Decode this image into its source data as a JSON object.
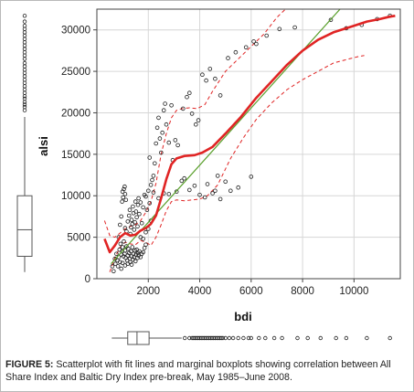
{
  "caption": {
    "label": "FIGURE 5:",
    "text": " Scatterplot with fit lines and marginal boxplots showing correlation between All Share Index and Baltic Dry Index pre-break, May 1985–June 2008."
  },
  "chart_data": {
    "type": "scatter",
    "xlabel": "bdi",
    "ylabel": "alsi",
    "xlim": [
      0,
      11800
    ],
    "ylim": [
      0,
      32500
    ],
    "xticks": [
      2000,
      4000,
      6000,
      8000,
      10000
    ],
    "xtick_labels": [
      "2000",
      "4000",
      "6000",
      "8000",
      "10000"
    ],
    "yticks": [
      0,
      5000,
      10000,
      15000,
      20000,
      25000,
      30000
    ],
    "ytick_labels": [
      "0",
      "5000",
      "10000",
      "15000",
      "20000",
      "25000",
      "30000"
    ],
    "grid": true,
    "colors": {
      "points": "#222222",
      "linear_fit": "#5aa02c",
      "smooth_fit": "#e02424",
      "ci": "#e02424",
      "box": "#555555"
    },
    "points": [
      [
        600,
        1500
      ],
      [
        650,
        900
      ],
      [
        700,
        2400
      ],
      [
        720,
        1800
      ],
      [
        760,
        3000
      ],
      [
        800,
        2200
      ],
      [
        820,
        1500
      ],
      [
        850,
        2600
      ],
      [
        880,
        3500
      ],
      [
        900,
        2000
      ],
      [
        920,
        4200
      ],
      [
        950,
        2900
      ],
      [
        980,
        3300
      ],
      [
        1000,
        3800
      ],
      [
        1030,
        2700
      ],
      [
        1050,
        4500
      ],
      [
        1080,
        3000
      ],
      [
        1100,
        3400
      ],
      [
        1120,
        2500
      ],
      [
        1150,
        3900
      ],
      [
        1180,
        2200
      ],
      [
        1200,
        2800
      ],
      [
        1220,
        3600
      ],
      [
        1250,
        3100
      ],
      [
        1280,
        2400
      ],
      [
        1300,
        2000
      ],
      [
        1330,
        3300
      ],
      [
        1350,
        2700
      ],
      [
        1380,
        3800
      ],
      [
        1400,
        2300
      ],
      [
        1420,
        3000
      ],
      [
        1450,
        2600
      ],
      [
        1480,
        3400
      ],
      [
        1500,
        2100
      ],
      [
        1520,
        2900
      ],
      [
        1550,
        3500
      ],
      [
        1580,
        2500
      ],
      [
        1600,
        3100
      ],
      [
        1620,
        2800
      ],
      [
        1650,
        3300
      ],
      [
        1700,
        2600
      ],
      [
        1750,
        3000
      ],
      [
        1800,
        3200
      ],
      [
        1850,
        3700
      ],
      [
        1900,
        4100
      ],
      [
        1200,
        1800
      ],
      [
        1100,
        1600
      ],
      [
        1000,
        1900
      ],
      [
        950,
        1200
      ],
      [
        1350,
        1700
      ],
      [
        850,
        5000
      ],
      [
        900,
        6500
      ],
      [
        950,
        7500
      ],
      [
        980,
        9300
      ],
      [
        1000,
        10500
      ],
      [
        1020,
        9800
      ],
      [
        1050,
        10800
      ],
      [
        1080,
        11100
      ],
      [
        1100,
        10200
      ],
      [
        1130,
        9500
      ],
      [
        1100,
        6100
      ],
      [
        1150,
        5700
      ],
      [
        1200,
        6900
      ],
      [
        1250,
        7600
      ],
      [
        1280,
        8300
      ],
      [
        1300,
        5400
      ],
      [
        1330,
        6200
      ],
      [
        1350,
        7100
      ],
      [
        1380,
        6600
      ],
      [
        1400,
        8700
      ],
      [
        1420,
        7900
      ],
      [
        1450,
        5900
      ],
      [
        1480,
        6800
      ],
      [
        1500,
        9300
      ],
      [
        1520,
        8100
      ],
      [
        1550,
        7400
      ],
      [
        1580,
        6300
      ],
      [
        1600,
        8900
      ],
      [
        1620,
        9700
      ],
      [
        1650,
        7800
      ],
      [
        1700,
        9200
      ],
      [
        1750,
        6700
      ],
      [
        1800,
        8600
      ],
      [
        1850,
        10100
      ],
      [
        1900,
        9900
      ],
      [
        1950,
        8300
      ],
      [
        2000,
        10600
      ],
      [
        2050,
        9100
      ],
      [
        2100,
        11300
      ],
      [
        2150,
        11900
      ],
      [
        1700,
        5000
      ],
      [
        1900,
        5600
      ],
      [
        2000,
        6000
      ],
      [
        1800,
        4800
      ],
      [
        2100,
        7000
      ],
      [
        2050,
        14600
      ],
      [
        2200,
        12400
      ],
      [
        2250,
        13900
      ],
      [
        2300,
        16300
      ],
      [
        2350,
        18200
      ],
      [
        2400,
        19400
      ],
      [
        2450,
        16900
      ],
      [
        2500,
        15200
      ],
      [
        2550,
        17600
      ],
      [
        2600,
        20300
      ],
      [
        2650,
        21100
      ],
      [
        2700,
        18600
      ],
      [
        2800,
        16400
      ],
      [
        2900,
        20900
      ],
      [
        2950,
        14300
      ],
      [
        3050,
        16700
      ],
      [
        3150,
        16100
      ],
      [
        3350,
        20500
      ],
      [
        3500,
        21900
      ],
      [
        3600,
        22400
      ],
      [
        3700,
        19900
      ],
      [
        3850,
        18600
      ],
      [
        3950,
        19100
      ],
      [
        4100,
        24600
      ],
      [
        4250,
        23900
      ],
      [
        4400,
        25300
      ],
      [
        4600,
        24100
      ],
      [
        4800,
        22100
      ],
      [
        5100,
        26600
      ],
      [
        5400,
        27300
      ],
      [
        5800,
        27900
      ],
      [
        6200,
        28300
      ],
      [
        6100,
        28600
      ],
      [
        6600,
        29300
      ],
      [
        7100,
        30100
      ],
      [
        2200,
        10400
      ],
      [
        2400,
        9700
      ],
      [
        2800,
        10200
      ],
      [
        3100,
        10500
      ],
      [
        3300,
        11800
      ],
      [
        3600,
        10700
      ],
      [
        4000,
        10100
      ],
      [
        4200,
        9800
      ],
      [
        4500,
        10300
      ],
      [
        4800,
        9600
      ],
      [
        5200,
        10600
      ],
      [
        5500,
        11000
      ],
      [
        6000,
        12300
      ],
      [
        3800,
        11200
      ],
      [
        4300,
        11400
      ],
      [
        4700,
        12400
      ],
      [
        5000,
        11700
      ],
      [
        4600,
        10600
      ],
      [
        3400,
        12100
      ],
      [
        2600,
        10300
      ],
      [
        7700,
        30300
      ],
      [
        9100,
        31200
      ],
      [
        9700,
        30200
      ],
      [
        10300,
        30600
      ],
      [
        10900,
        31300
      ],
      [
        11400,
        31700
      ]
    ],
    "linear_fit": [
      [
        550,
        1800
      ],
      [
        9600,
        33000
      ]
    ],
    "smooth_fit": [
      [
        300,
        4800
      ],
      [
        500,
        3200
      ],
      [
        700,
        4000
      ],
      [
        900,
        5000
      ],
      [
        1100,
        5500
      ],
      [
        1300,
        5200
      ],
      [
        1500,
        5300
      ],
      [
        1700,
        5800
      ],
      [
        1900,
        6100
      ],
      [
        2100,
        6600
      ],
      [
        2300,
        7600
      ],
      [
        2500,
        9700
      ],
      [
        2700,
        12000
      ],
      [
        2900,
        13800
      ],
      [
        3100,
        14500
      ],
      [
        3400,
        14800
      ],
      [
        3800,
        14900
      ],
      [
        4100,
        15200
      ],
      [
        4500,
        15900
      ],
      [
        5000,
        17500
      ],
      [
        5600,
        19500
      ],
      [
        6200,
        21800
      ],
      [
        6800,
        23800
      ],
      [
        7400,
        25800
      ],
      [
        8000,
        27500
      ],
      [
        8600,
        28800
      ],
      [
        9200,
        29700
      ],
      [
        9900,
        30400
      ],
      [
        10500,
        31000
      ],
      [
        11000,
        31300
      ],
      [
        11400,
        31600
      ],
      [
        11600,
        31700
      ]
    ],
    "ci_upper": [
      [
        300,
        7000
      ],
      [
        500,
        5200
      ],
      [
        700,
        5000
      ],
      [
        900,
        5500
      ],
      [
        1100,
        6000
      ],
      [
        1300,
        6300
      ],
      [
        1500,
        6500
      ],
      [
        1700,
        7000
      ],
      [
        1900,
        8000
      ],
      [
        2100,
        9300
      ],
      [
        2300,
        11500
      ],
      [
        2500,
        15000
      ],
      [
        2700,
        17500
      ],
      [
        2900,
        19400
      ],
      [
        3100,
        20300
      ],
      [
        3300,
        20500
      ],
      [
        3600,
        20600
      ],
      [
        3900,
        20500
      ],
      [
        4200,
        21000
      ],
      [
        4500,
        22600
      ],
      [
        5000,
        25000
      ],
      [
        5500,
        26500
      ],
      [
        6000,
        28000
      ],
      [
        6500,
        29500
      ],
      [
        7000,
        31500
      ],
      [
        7500,
        33000
      ]
    ],
    "ci_lower": [
      [
        500,
        800
      ],
      [
        700,
        2500
      ],
      [
        900,
        3800
      ],
      [
        1100,
        4400
      ],
      [
        1300,
        4200
      ],
      [
        1500,
        4100
      ],
      [
        1700,
        4600
      ],
      [
        1900,
        4400
      ],
      [
        2100,
        4000
      ],
      [
        2300,
        5000
      ],
      [
        2500,
        6500
      ],
      [
        2700,
        8200
      ],
      [
        2900,
        9300
      ],
      [
        3100,
        9500
      ],
      [
        3400,
        9400
      ],
      [
        3700,
        9500
      ],
      [
        4000,
        9600
      ],
      [
        4300,
        10000
      ],
      [
        4700,
        11300
      ],
      [
        5200,
        14500
      ],
      [
        5700,
        17000
      ],
      [
        6200,
        19200
      ],
      [
        6800,
        21200
      ],
      [
        7400,
        22800
      ],
      [
        8000,
        24000
      ],
      [
        8600,
        25000
      ],
      [
        9200,
        26000
      ],
      [
        9800,
        26500
      ],
      [
        10200,
        26800
      ],
      [
        10400,
        26900
      ]
    ],
    "box_x": {
      "min": 580,
      "q1": 1200,
      "median": 1560,
      "q3": 2030,
      "whisker_high": 3300,
      "outliers": [
        3420,
        3600,
        3700,
        3760,
        3820,
        3880,
        3940,
        4000,
        4060,
        4120,
        4180,
        4240,
        4300,
        4360,
        4420,
        4480,
        4540,
        4600,
        4660,
        4720,
        4780,
        4840,
        4900,
        5000,
        5150,
        5300,
        5500,
        5700,
        5900,
        6000,
        6300,
        6550,
        6900,
        7200,
        7800,
        8200,
        8700,
        9300,
        9700,
        10500,
        11400
      ]
    },
    "box_y": {
      "min": 800,
      "q1": 2700,
      "median": 5900,
      "q3": 10000,
      "whisker_high": 19500,
      "outliers": [
        20300,
        20700,
        21000,
        21300,
        21700,
        22000,
        22400,
        22800,
        23200,
        23600,
        24000,
        24400,
        24800,
        25200,
        25600,
        26000,
        26500,
        26900,
        27300,
        27700,
        28100,
        28500,
        28900,
        29300,
        29700,
        30100,
        30500,
        31000,
        31700
      ]
    }
  }
}
